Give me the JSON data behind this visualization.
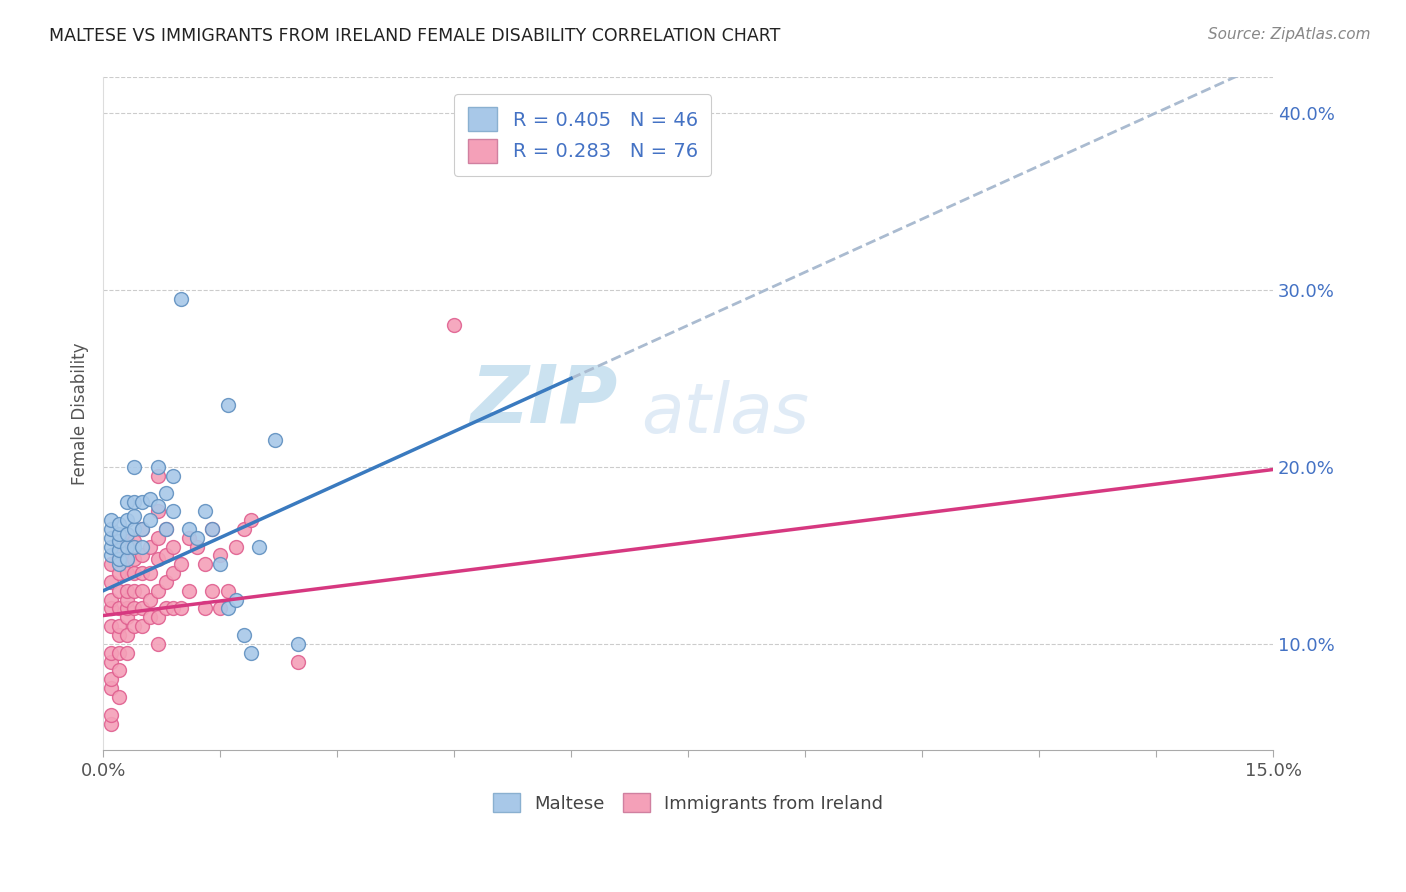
{
  "title": "MALTESE VS IMMIGRANTS FROM IRELAND FEMALE DISABILITY CORRELATION CHART",
  "source": "Source: ZipAtlas.com",
  "ylabel_label": "Female Disability",
  "xlim": [
    0.0,
    0.15
  ],
  "ylim": [
    0.04,
    0.42
  ],
  "xticks": [
    0.0,
    0.015,
    0.03,
    0.045,
    0.06,
    0.075,
    0.09,
    0.105,
    0.12,
    0.135,
    0.15
  ],
  "xticklabels": [
    "0.0%",
    "",
    "",
    "",
    "",
    "",
    "",
    "",
    "",
    "",
    "15.0%"
  ],
  "yticks_right": [
    0.1,
    0.2,
    0.3,
    0.4
  ],
  "ytick_right_labels": [
    "10.0%",
    "20.0%",
    "30.0%",
    "40.0%"
  ],
  "legend_r1": "R = 0.405",
  "legend_n1": "N = 46",
  "legend_r2": "R = 0.283",
  "legend_n2": "N = 76",
  "blue_color": "#a8c8e8",
  "pink_color": "#f4a0b8",
  "blue_line_color": "#3a7abf",
  "pink_line_color": "#d63880",
  "dashed_line_color": "#aabbd0",
  "watermark_zip": "ZIP",
  "watermark_atlas": "atlas",
  "maltese_x": [
    0.001,
    0.001,
    0.001,
    0.001,
    0.001,
    0.002,
    0.002,
    0.002,
    0.002,
    0.002,
    0.002,
    0.003,
    0.003,
    0.003,
    0.003,
    0.003,
    0.004,
    0.004,
    0.004,
    0.004,
    0.004,
    0.005,
    0.005,
    0.005,
    0.006,
    0.006,
    0.007,
    0.007,
    0.008,
    0.008,
    0.009,
    0.009,
    0.01,
    0.011,
    0.012,
    0.013,
    0.014,
    0.015,
    0.016,
    0.016,
    0.017,
    0.018,
    0.019,
    0.02,
    0.022,
    0.025
  ],
  "maltese_y": [
    0.15,
    0.155,
    0.16,
    0.165,
    0.17,
    0.145,
    0.148,
    0.153,
    0.158,
    0.162,
    0.168,
    0.148,
    0.155,
    0.162,
    0.17,
    0.18,
    0.155,
    0.165,
    0.172,
    0.18,
    0.2,
    0.155,
    0.165,
    0.18,
    0.17,
    0.182,
    0.178,
    0.2,
    0.165,
    0.185,
    0.175,
    0.195,
    0.295,
    0.165,
    0.16,
    0.175,
    0.165,
    0.145,
    0.12,
    0.235,
    0.125,
    0.105,
    0.095,
    0.155,
    0.215,
    0.1
  ],
  "ireland_x": [
    0.001,
    0.001,
    0.001,
    0.001,
    0.001,
    0.001,
    0.001,
    0.001,
    0.001,
    0.001,
    0.001,
    0.002,
    0.002,
    0.002,
    0.002,
    0.002,
    0.002,
    0.002,
    0.002,
    0.002,
    0.003,
    0.003,
    0.003,
    0.003,
    0.003,
    0.003,
    0.003,
    0.003,
    0.003,
    0.004,
    0.004,
    0.004,
    0.004,
    0.004,
    0.004,
    0.005,
    0.005,
    0.005,
    0.005,
    0.005,
    0.005,
    0.006,
    0.006,
    0.006,
    0.006,
    0.007,
    0.007,
    0.007,
    0.007,
    0.007,
    0.007,
    0.007,
    0.008,
    0.008,
    0.008,
    0.008,
    0.009,
    0.009,
    0.009,
    0.01,
    0.01,
    0.011,
    0.011,
    0.012,
    0.013,
    0.013,
    0.014,
    0.014,
    0.015,
    0.015,
    0.016,
    0.017,
    0.018,
    0.019,
    0.025,
    0.045
  ],
  "ireland_y": [
    0.055,
    0.06,
    0.075,
    0.08,
    0.09,
    0.095,
    0.11,
    0.12,
    0.125,
    0.135,
    0.145,
    0.07,
    0.085,
    0.095,
    0.105,
    0.11,
    0.12,
    0.13,
    0.14,
    0.15,
    0.095,
    0.105,
    0.115,
    0.12,
    0.125,
    0.13,
    0.14,
    0.148,
    0.158,
    0.11,
    0.12,
    0.13,
    0.14,
    0.148,
    0.158,
    0.11,
    0.12,
    0.13,
    0.14,
    0.15,
    0.165,
    0.115,
    0.125,
    0.14,
    0.155,
    0.1,
    0.115,
    0.13,
    0.148,
    0.16,
    0.175,
    0.195,
    0.12,
    0.135,
    0.15,
    0.165,
    0.12,
    0.14,
    0.155,
    0.12,
    0.145,
    0.13,
    0.16,
    0.155,
    0.12,
    0.145,
    0.13,
    0.165,
    0.12,
    0.15,
    0.13,
    0.155,
    0.165,
    0.17,
    0.09,
    0.28
  ]
}
